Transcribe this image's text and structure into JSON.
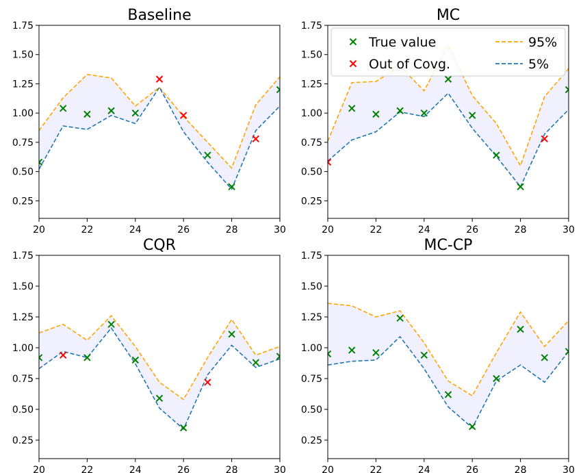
{
  "chart_data": [
    {
      "type": "line",
      "title": "Baseline",
      "x": [
        20,
        21,
        22,
        23,
        24,
        25,
        26,
        27,
        28,
        29,
        30
      ],
      "upper_95": [
        0.85,
        1.13,
        1.33,
        1.3,
        1.06,
        1.22,
        0.97,
        0.75,
        0.53,
        1.07,
        1.31
      ],
      "lower_5": [
        0.52,
        0.89,
        0.86,
        0.98,
        0.91,
        1.22,
        0.84,
        0.58,
        0.35,
        0.85,
        1.06
      ],
      "true_value": [
        0.58,
        1.04,
        0.99,
        1.02,
        1.0,
        1.29,
        0.98,
        0.64,
        0.37,
        0.78,
        1.2
      ],
      "xlim": [
        20,
        30
      ],
      "ylim": [
        0.1,
        1.75
      ],
      "xticks": [
        "20",
        "22",
        "24",
        "26",
        "28",
        "30"
      ],
      "yticks": [
        "0.25",
        "0.50",
        "0.75",
        "1.00",
        "1.25",
        "1.50",
        "1.75"
      ]
    },
    {
      "type": "line",
      "title": "MC",
      "x": [
        20,
        21,
        22,
        23,
        24,
        25,
        26,
        27,
        28,
        29,
        30
      ],
      "upper_95": [
        0.76,
        1.26,
        1.27,
        1.4,
        1.19,
        1.58,
        1.15,
        0.91,
        0.55,
        1.14,
        1.38
      ],
      "lower_5": [
        0.59,
        0.77,
        0.84,
        1.01,
        0.97,
        1.17,
        0.87,
        0.63,
        0.37,
        0.82,
        1.03
      ],
      "true_value": [
        0.58,
        1.04,
        0.99,
        1.02,
        1.0,
        1.29,
        0.98,
        0.64,
        0.37,
        0.78,
        1.2
      ],
      "xlim": [
        20,
        30
      ],
      "ylim": [
        0.1,
        1.75
      ],
      "xticks": [
        "20",
        "22",
        "24",
        "26",
        "28",
        "30"
      ],
      "yticks": [
        "0.25",
        "0.50",
        "0.75",
        "1.00",
        "1.25",
        "1.50",
        "1.75"
      ],
      "legend": {
        "location": "top",
        "entries": [
          "True value",
          "Out of Covg.",
          "95%",
          "5%"
        ]
      }
    },
    {
      "type": "line",
      "title": "CQR",
      "x": [
        20,
        21,
        22,
        23,
        24,
        25,
        26,
        27,
        28,
        29,
        30
      ],
      "upper_95": [
        1.12,
        1.19,
        1.06,
        1.26,
        1.01,
        0.72,
        0.58,
        0.92,
        1.23,
        0.94,
        1.01
      ],
      "lower_5": [
        0.83,
        0.97,
        0.92,
        1.16,
        0.87,
        0.51,
        0.34,
        0.78,
        1.02,
        0.84,
        0.91
      ],
      "true_value": [
        0.92,
        0.94,
        0.92,
        1.19,
        0.9,
        0.59,
        0.35,
        0.72,
        1.11,
        0.88,
        0.93
      ],
      "xlim": [
        20,
        30
      ],
      "ylim": [
        0.1,
        1.75
      ],
      "xticks": [
        "20",
        "22",
        "24",
        "26",
        "28",
        "30"
      ],
      "yticks": [
        "0.25",
        "0.50",
        "0.75",
        "1.00",
        "1.25",
        "1.50",
        "1.75"
      ]
    },
    {
      "type": "line",
      "title": "MC-CP",
      "x": [
        20,
        21,
        22,
        23,
        24,
        25,
        26,
        27,
        28,
        29,
        30
      ],
      "upper_95": [
        1.36,
        1.34,
        1.25,
        1.3,
        1.04,
        0.73,
        0.61,
        0.96,
        1.29,
        1.01,
        1.22
      ],
      "lower_5": [
        0.86,
        0.89,
        0.9,
        1.09,
        0.83,
        0.52,
        0.35,
        0.73,
        0.86,
        0.72,
        0.97
      ],
      "true_value": [
        0.95,
        0.98,
        0.96,
        1.24,
        0.94,
        0.62,
        0.36,
        0.75,
        1.15,
        0.92,
        0.97
      ],
      "xlim": [
        20,
        30
      ],
      "ylim": [
        0.1,
        1.75
      ],
      "xticks": [
        "20",
        "22",
        "24",
        "26",
        "28",
        "30"
      ],
      "yticks": [
        "0.25",
        "0.50",
        "0.75",
        "1.00",
        "1.25",
        "1.50",
        "1.75"
      ]
    }
  ],
  "colors": {
    "upper": "#ffa500",
    "lower": "#1f77b4",
    "band": "#f0f0ff",
    "in_coverage": "#008000",
    "out_of_coverage": "#ff0000"
  }
}
